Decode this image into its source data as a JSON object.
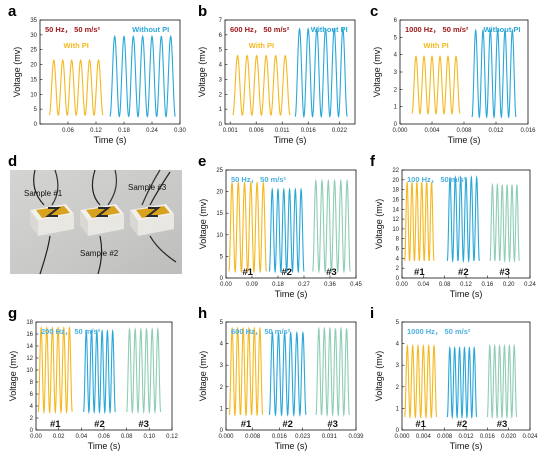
{
  "figure": {
    "panels": [
      {
        "letter": "a"
      },
      {
        "letter": "b"
      },
      {
        "letter": "c"
      },
      {
        "letter": "d"
      },
      {
        "letter": "e"
      },
      {
        "letter": "f"
      },
      {
        "letter": "g"
      },
      {
        "letter": "h"
      },
      {
        "letter": "i"
      }
    ],
    "photo_labels": [
      "Sample #1",
      "Sample #2",
      "Sample #3"
    ]
  },
  "colors": {
    "with_pi": "#f5b820",
    "without_pi": "#2aa7d9",
    "sample1": "#f5b820",
    "sample2": "#2aa7d9",
    "sample3": "#8fcdb4",
    "condition_red": "#a0181b",
    "condition_blue": "#4bb1de"
  },
  "chart_data": [
    {
      "panel": "a",
      "type": "line",
      "xlabel": "Time (s)",
      "ylabel": "Voltage (mv)",
      "xlim": [
        0,
        0.3
      ],
      "ylim": [
        0,
        35
      ],
      "xticks": [
        "0.06",
        "0.12",
        "0.18",
        "0.24",
        "0.30"
      ],
      "xtick_values": [
        0.06,
        0.12,
        0.18,
        0.24,
        0.3
      ],
      "yticks": [
        "0",
        "5",
        "10",
        "15",
        "20",
        "25",
        "30",
        "35"
      ],
      "ytick_values": [
        0,
        5,
        10,
        15,
        20,
        25,
        30,
        35
      ],
      "condition": "50 Hz， 50 m/s²",
      "condition_color": "red",
      "series": [
        {
          "name": "With PI",
          "color": "with_pi",
          "t_start": 0.02,
          "t_end": 0.135,
          "cycles": 6,
          "ymin": 3,
          "ymax": 21.5
        },
        {
          "name": "Without PI",
          "color": "without_pi",
          "t_start": 0.15,
          "t_end": 0.29,
          "cycles": 7,
          "ymin": 2.5,
          "ymax": 29.5
        }
      ]
    },
    {
      "panel": "b",
      "type": "line",
      "xlabel": "Time (s)",
      "ylabel": "Voltage (mv)",
      "xlim": [
        0,
        0.025
      ],
      "ylim": [
        0,
        7
      ],
      "xticks": [
        "0.001",
        "0.006",
        "0.011",
        "0.016",
        "0.022"
      ],
      "xtick_values": [
        0.001,
        0.006,
        0.011,
        0.016,
        0.022
      ],
      "yticks": [
        "0",
        "1",
        "2",
        "3",
        "4",
        "5",
        "6",
        "7"
      ],
      "ytick_values": [
        0,
        1,
        2,
        3,
        4,
        5,
        6,
        7
      ],
      "condition": "600 Hz， 50 m/s²",
      "condition_color": "red",
      "series": [
        {
          "name": "With PI",
          "color": "with_pi",
          "t_start": 0.0015,
          "t_end": 0.0125,
          "cycles": 6,
          "ymin": 0.6,
          "ymax": 4.6
        },
        {
          "name": "Without PI",
          "color": "without_pi",
          "t_start": 0.0135,
          "t_end": 0.0235,
          "cycles": 6,
          "ymin": 0.5,
          "ymax": 6.4
        }
      ]
    },
    {
      "panel": "c",
      "type": "line",
      "xlabel": "Time (s)",
      "ylabel": "Voltage (mv)",
      "xlim": [
        0,
        0.016
      ],
      "ylim": [
        0,
        6
      ],
      "xticks": [
        "0.000",
        "0.004",
        "0.008",
        "0.012",
        "0.016"
      ],
      "xtick_values": [
        0,
        0.004,
        0.008,
        0.012,
        0.016
      ],
      "yticks": [
        "0",
        "1",
        "2",
        "3",
        "4",
        "5",
        "6"
      ],
      "ytick_values": [
        0,
        1,
        2,
        3,
        4,
        5,
        6
      ],
      "condition": "1000 Hz， 50 m/s²",
      "condition_color": "red",
      "series": [
        {
          "name": "With PI",
          "color": "with_pi",
          "t_start": 0.0015,
          "t_end": 0.0075,
          "cycles": 6,
          "ymin": 0.6,
          "ymax": 3.9
        },
        {
          "name": "Without PI",
          "color": "without_pi",
          "t_start": 0.009,
          "t_end": 0.0145,
          "cycles": 6,
          "ymin": 0.4,
          "ymax": 5.4
        }
      ]
    },
    {
      "panel": "e",
      "type": "line",
      "xlabel": "Time (s)",
      "ylabel": "Voltage (mv)",
      "xlim": [
        0,
        0.45
      ],
      "ylim": [
        0,
        25
      ],
      "xticks": [
        "0.00",
        "0.09",
        "0.18",
        "0.27",
        "0.36",
        "0.45"
      ],
      "xtick_values": [
        0,
        0.09,
        0.18,
        0.27,
        0.36,
        0.45
      ],
      "yticks": [
        "0",
        "5",
        "10",
        "15",
        "20",
        "25"
      ],
      "ytick_values": [
        0,
        5,
        10,
        15,
        20,
        25
      ],
      "condition": "50 Hz， 50 m/s²",
      "condition_color": "blue",
      "series": [
        {
          "name": "#1",
          "color": "sample1",
          "t_start": 0.01,
          "t_end": 0.14,
          "cycles": 6,
          "ymin": 1.5,
          "ymax": 22
        },
        {
          "name": "#2",
          "color": "sample2",
          "t_start": 0.15,
          "t_end": 0.27,
          "cycles": 6,
          "ymin": 1.5,
          "ymax": 20.5
        },
        {
          "name": "#3",
          "color": "sample3",
          "t_start": 0.3,
          "t_end": 0.43,
          "cycles": 6,
          "ymin": 1.5,
          "ymax": 22.5
        }
      ]
    },
    {
      "panel": "f",
      "type": "line",
      "xlabel": "Time (s)",
      "ylabel": "Voltage (mv)",
      "xlim": [
        0,
        0.24
      ],
      "ylim": [
        0,
        22
      ],
      "xticks": [
        "0.00",
        "0.04",
        "0.08",
        "0.12",
        "0.16",
        "0.20",
        "0.24"
      ],
      "xtick_values": [
        0,
        0.04,
        0.08,
        0.12,
        0.16,
        0.2,
        0.24
      ],
      "yticks": [
        "0",
        "2",
        "4",
        "6",
        "8",
        "10",
        "12",
        "14",
        "16",
        "18",
        "20",
        "22"
      ],
      "ytick_values": [
        0,
        2,
        4,
        6,
        8,
        10,
        12,
        14,
        16,
        18,
        20,
        22
      ],
      "condition": "100 Hz， 50 m/s²",
      "condition_color": "blue",
      "series": [
        {
          "name": "#1",
          "color": "sample1",
          "t_start": 0.005,
          "t_end": 0.06,
          "cycles": 6,
          "ymin": 3.5,
          "ymax": 19.5
        },
        {
          "name": "#2",
          "color": "sample2",
          "t_start": 0.085,
          "t_end": 0.145,
          "cycles": 6,
          "ymin": 3.5,
          "ymax": 20.5
        },
        {
          "name": "#3",
          "color": "sample3",
          "t_start": 0.165,
          "t_end": 0.22,
          "cycles": 6,
          "ymin": 3.5,
          "ymax": 19
        }
      ]
    },
    {
      "panel": "g",
      "type": "line",
      "xlabel": "Time (s)",
      "ylabel": "Voltage (mv)",
      "xlim": [
        0,
        0.12
      ],
      "ylim": [
        0,
        18
      ],
      "xticks": [
        "0.00",
        "0.02",
        "0.04",
        "0.06",
        "0.08",
        "0.10",
        "0.12"
      ],
      "xtick_values": [
        0,
        0.02,
        0.04,
        0.06,
        0.08,
        0.1,
        0.12
      ],
      "yticks": [
        "0",
        "2",
        "4",
        "6",
        "8",
        "10",
        "12",
        "14",
        "16",
        "18"
      ],
      "ytick_values": [
        0,
        2,
        4,
        6,
        8,
        10,
        12,
        14,
        16,
        18
      ],
      "condition": "200 Hz， 50 m/s²",
      "condition_color": "blue",
      "series": [
        {
          "name": "#1",
          "color": "sample1",
          "t_start": 0.002,
          "t_end": 0.032,
          "cycles": 6,
          "ymin": 3,
          "ymax": 17
        },
        {
          "name": "#2",
          "color": "sample2",
          "t_start": 0.042,
          "t_end": 0.07,
          "cycles": 6,
          "ymin": 3,
          "ymax": 16.5
        },
        {
          "name": "#3",
          "color": "sample3",
          "t_start": 0.08,
          "t_end": 0.11,
          "cycles": 6,
          "ymin": 3,
          "ymax": 16.8
        }
      ]
    },
    {
      "panel": "h",
      "type": "line",
      "xlabel": "Time (s)",
      "ylabel": "Voltage (mv)",
      "xlim": [
        0,
        0.039
      ],
      "ylim": [
        0,
        5
      ],
      "xticks": [
        "0.000",
        "0.008",
        "0.016",
        "0.023",
        "0.031",
        "0.039"
      ],
      "xtick_values": [
        0,
        0.008,
        0.016,
        0.023,
        0.031,
        0.039
      ],
      "yticks": [
        "0",
        "1",
        "2",
        "3",
        "4",
        "5"
      ],
      "ytick_values": [
        0,
        1,
        2,
        3,
        4,
        5
      ],
      "condition": "600 Hz， 50 m/s²",
      "condition_color": "blue",
      "series": [
        {
          "name": "#1",
          "color": "sample1",
          "t_start": 0.001,
          "t_end": 0.011,
          "cycles": 6,
          "ymin": 0.7,
          "ymax": 4.7
        },
        {
          "name": "#2",
          "color": "sample2",
          "t_start": 0.013,
          "t_end": 0.024,
          "cycles": 6,
          "ymin": 0.7,
          "ymax": 4.5
        },
        {
          "name": "#3",
          "color": "sample3",
          "t_start": 0.027,
          "t_end": 0.037,
          "cycles": 6,
          "ymin": 0.7,
          "ymax": 4.7
        }
      ]
    },
    {
      "panel": "i",
      "type": "line",
      "xlabel": "Time (s)",
      "ylabel": "Voltage (mv)",
      "xlim": [
        0,
        0.024
      ],
      "ylim": [
        0,
        5
      ],
      "xticks": [
        "0.000",
        "0.004",
        "0.008",
        "0.012",
        "0.016",
        "0.020",
        "0.024"
      ],
      "xtick_values": [
        0,
        0.004,
        0.008,
        0.012,
        0.016,
        0.02,
        0.024
      ],
      "yticks": [
        "0",
        "1",
        "2",
        "3",
        "4",
        "5"
      ],
      "ytick_values": [
        0,
        1,
        2,
        3,
        4,
        5
      ],
      "condition": "1000 Hz， 50 m/s²",
      "condition_color": "blue",
      "series": [
        {
          "name": "#1",
          "color": "sample1",
          "t_start": 0.0005,
          "t_end": 0.0065,
          "cycles": 6,
          "ymin": 0.6,
          "ymax": 3.9
        },
        {
          "name": "#2",
          "color": "sample2",
          "t_start": 0.0085,
          "t_end": 0.014,
          "cycles": 6,
          "ymin": 0.6,
          "ymax": 3.8
        },
        {
          "name": "#3",
          "color": "sample3",
          "t_start": 0.016,
          "t_end": 0.0215,
          "cycles": 6,
          "ymin": 0.6,
          "ymax": 3.9
        }
      ]
    }
  ]
}
